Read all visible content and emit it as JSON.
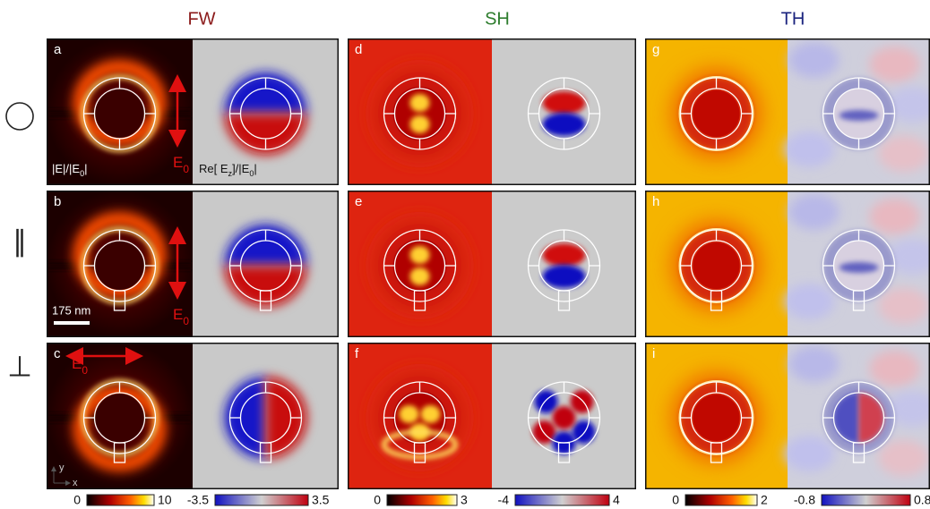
{
  "columns": [
    {
      "title": "FW"
    },
    {
      "title": "SH"
    },
    {
      "title": "TH"
    }
  ],
  "row_symbols": {
    "parallel": "∥",
    "perpendicular": "⊥"
  },
  "panels": [
    "a",
    "b",
    "c",
    "d",
    "e",
    "f",
    "g",
    "h",
    "i"
  ],
  "annotations": {
    "field_magnitude": [
      {
        "text": "|E|/|E"
      },
      {
        "text": "0",
        "sub": true
      },
      {
        "text": "|"
      }
    ],
    "field_real": [
      {
        "text": "Re[ E"
      },
      {
        "text": "z",
        "sub": true
      },
      {
        "text": "]/|E"
      },
      {
        "text": "0",
        "sub": true
      },
      {
        "text": "|"
      }
    ],
    "polarization_a": [
      {
        "text": "E"
      },
      {
        "text": "0",
        "sub": true
      }
    ],
    "polarization_b": [
      {
        "text": "E"
      },
      {
        "text": "0",
        "sub": true
      }
    ],
    "polarization_c": [
      {
        "text": "E"
      },
      {
        "text": "0",
        "sub": true
      }
    ],
    "scale_bar": "175 nm",
    "axis_y": "y",
    "axis_x": "x"
  },
  "colorbars": [
    {
      "min": 0,
      "max": 10,
      "colormap": "hot"
    },
    {
      "min": -3.5,
      "max": 3.5,
      "colormap": "diverging"
    },
    {
      "min": 0,
      "max": 3,
      "colormap": "hot"
    },
    {
      "min": -4,
      "max": 4,
      "colormap": "diverging"
    },
    {
      "min": 0,
      "max": 2,
      "colormap": "hot"
    },
    {
      "min": -0.8,
      "max": 0.8,
      "colormap": "diverging"
    }
  ]
}
